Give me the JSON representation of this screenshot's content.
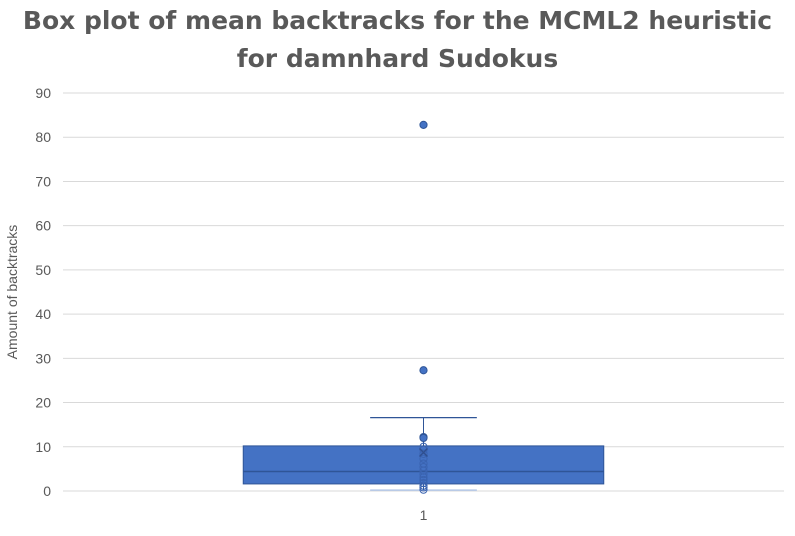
{
  "chart_data": {
    "type": "box",
    "title": "Box plot of mean backtracks for the MCML2 heuristic for damnhard Sudokus",
    "ylabel": "Amount of backtracks",
    "xlabel": "",
    "ylim": [
      0,
      90
    ],
    "yticks": [
      0,
      10,
      20,
      30,
      40,
      50,
      60,
      70,
      80,
      90
    ],
    "categories": [
      "1"
    ],
    "grid": true,
    "colors": {
      "box_fill": "#4472c4",
      "box_edge": "#2f5597",
      "grid": "#d9d9d9",
      "text": "#595959"
    },
    "series": [
      {
        "category": "1",
        "whisker_low": 0.2,
        "q1": 1.6,
        "median": 4.4,
        "q3": 10.2,
        "whisker_high": 16.6,
        "outliers": [
          82.8,
          27.3,
          12.2,
          12.0
        ],
        "points": [
          0.3,
          0.8,
          1.2,
          1.8,
          2.5,
          3.1,
          3.8,
          4.6,
          5.4,
          6.2,
          7.3,
          8.4,
          9.3,
          10.0
        ]
      }
    ]
  }
}
